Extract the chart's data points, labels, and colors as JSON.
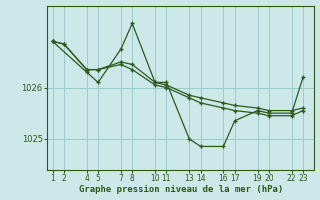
{
  "title": "Graphe pression niveau de la mer (hPa)",
  "background_color": "#cce8e8",
  "grid_color": "#99cccc",
  "line_color": "#2d5a1b",
  "text_color": "#2d5a1b",
  "ylim": [
    1024.4,
    1027.6
  ],
  "xlim": [
    0.5,
    24.0
  ],
  "yticks": [
    1025,
    1026
  ],
  "xtick_positions": [
    1,
    2,
    4,
    5,
    7,
    8,
    10,
    11,
    13,
    14,
    16,
    17,
    19,
    20,
    22,
    23
  ],
  "xtick_labels": [
    "1",
    "2",
    "4",
    "5",
    "7",
    "8",
    "10",
    "11",
    "13",
    "14",
    "16",
    "17",
    "19",
    "20",
    "22",
    "23"
  ],
  "series": [
    {
      "x": [
        1,
        2,
        4,
        5,
        7,
        8,
        10,
        11,
        13,
        14,
        16,
        17,
        19,
        20,
        22,
        23
      ],
      "y": [
        1026.9,
        1026.85,
        1026.35,
        1026.35,
        1026.5,
        1026.45,
        1026.1,
        1026.05,
        1025.85,
        1025.8,
        1025.7,
        1025.65,
        1025.6,
        1025.55,
        1025.55,
        1025.6
      ]
    },
    {
      "x": [
        1,
        2,
        4,
        5,
        7,
        8,
        10,
        11,
        13,
        14,
        16,
        17,
        19,
        20,
        22,
        23
      ],
      "y": [
        1026.9,
        1026.85,
        1026.35,
        1026.35,
        1026.45,
        1026.35,
        1026.05,
        1026.0,
        1025.8,
        1025.7,
        1025.6,
        1025.55,
        1025.5,
        1025.45,
        1025.45,
        1025.55
      ]
    },
    {
      "x": [
        1,
        4,
        5,
        7,
        8,
        10,
        11,
        13,
        14,
        16,
        17,
        19,
        20,
        22,
        23
      ],
      "y": [
        1026.9,
        1026.3,
        1026.1,
        1026.75,
        1027.25,
        1026.1,
        1026.1,
        1025.0,
        1024.85,
        1024.85,
        1025.35,
        1025.55,
        1025.5,
        1025.5,
        1026.2
      ]
    }
  ]
}
